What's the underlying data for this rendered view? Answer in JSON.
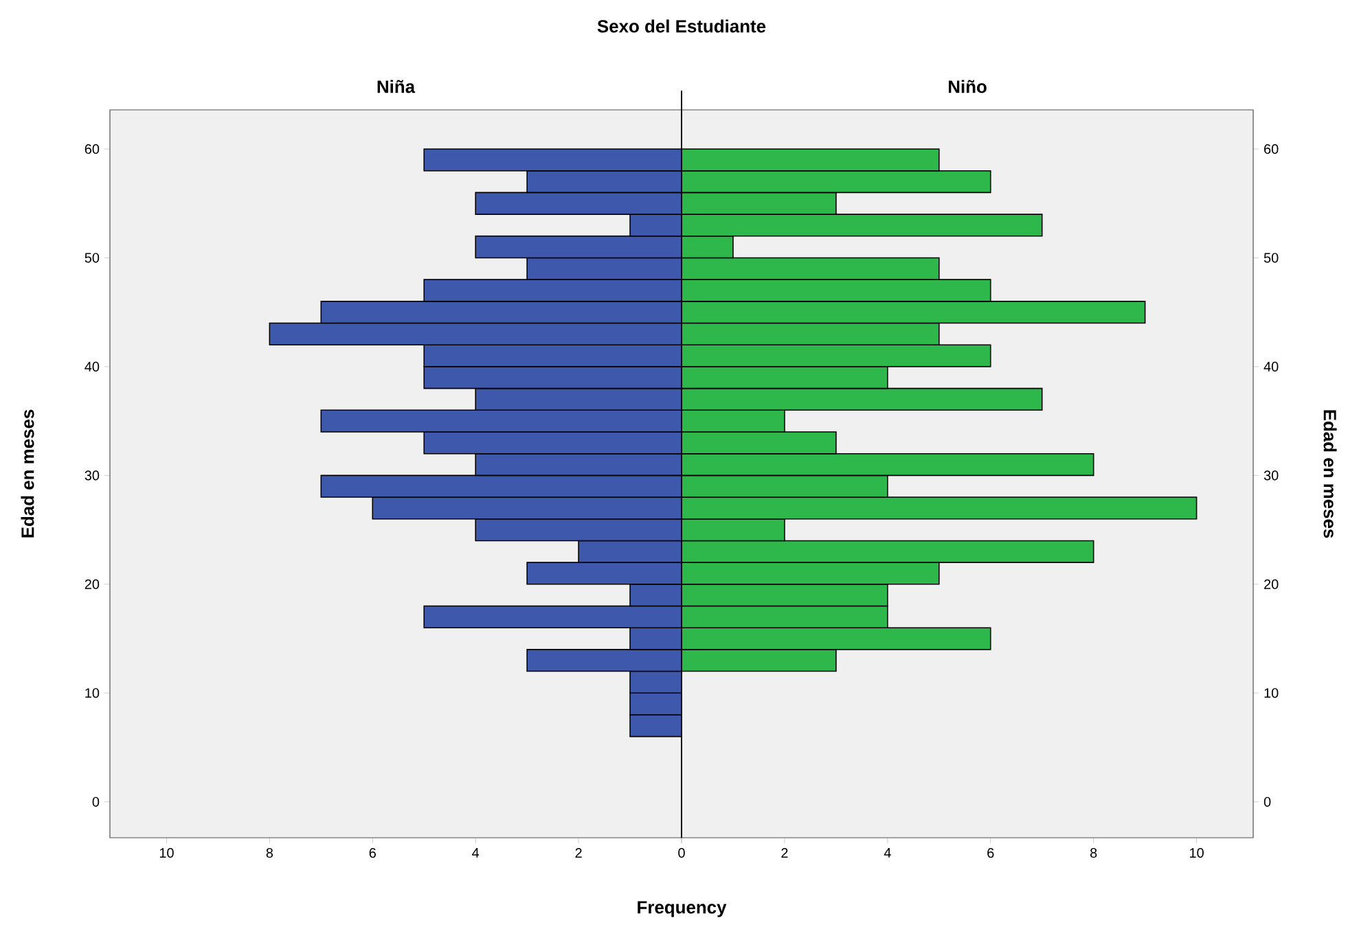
{
  "chart_data": [
    {
      "type": "histogram",
      "orientation": "horizontal",
      "title": "Sexo del Estudiante",
      "subtitle": "Niña",
      "xlabel": "Frequency",
      "ylabel": "Edad en meses",
      "color": "#3e58ab",
      "bins": [
        6,
        8,
        10,
        12,
        14,
        16,
        18,
        20,
        22,
        24,
        26,
        28,
        30,
        32,
        34,
        36,
        38,
        40,
        42,
        44,
        46,
        48,
        50,
        52,
        54,
        56,
        58,
        60
      ],
      "values": [
        1,
        1,
        1,
        3,
        1,
        5,
        1,
        3,
        2,
        4,
        6,
        7,
        4,
        5,
        7,
        4,
        5,
        5,
        8,
        7,
        5,
        3,
        4,
        1,
        4,
        3,
        5
      ],
      "xlim": [
        11.1,
        0
      ],
      "xticks": [
        10,
        8,
        6,
        4,
        2,
        0
      ],
      "ylim": [
        -3.3,
        63.6
      ],
      "yticks": [
        0,
        10,
        20,
        30,
        40,
        50,
        60
      ]
    },
    {
      "type": "histogram",
      "orientation": "horizontal",
      "subtitle": "Niño",
      "ylabel": "Edad en meses",
      "color": "#2eb84b",
      "bins": [
        6,
        8,
        10,
        12,
        14,
        16,
        18,
        20,
        22,
        24,
        26,
        28,
        30,
        32,
        34,
        36,
        38,
        40,
        42,
        44,
        46,
        48,
        50,
        52,
        54,
        56,
        58,
        60
      ],
      "values": [
        0,
        0,
        0,
        3,
        6,
        4,
        4,
        5,
        8,
        2,
        10,
        4,
        8,
        3,
        2,
        7,
        4,
        6,
        5,
        9,
        6,
        5,
        1,
        7,
        3,
        6,
        5
      ],
      "xlim": [
        0,
        11.1
      ],
      "xticks": [
        {
          "value": 0,
          "label": null
        },
        2,
        4,
        6,
        8,
        10
      ],
      "ylim": [
        -3.3,
        63.6
      ],
      "yticks": [
        0,
        10,
        20,
        30,
        40,
        50,
        60
      ]
    }
  ]
}
